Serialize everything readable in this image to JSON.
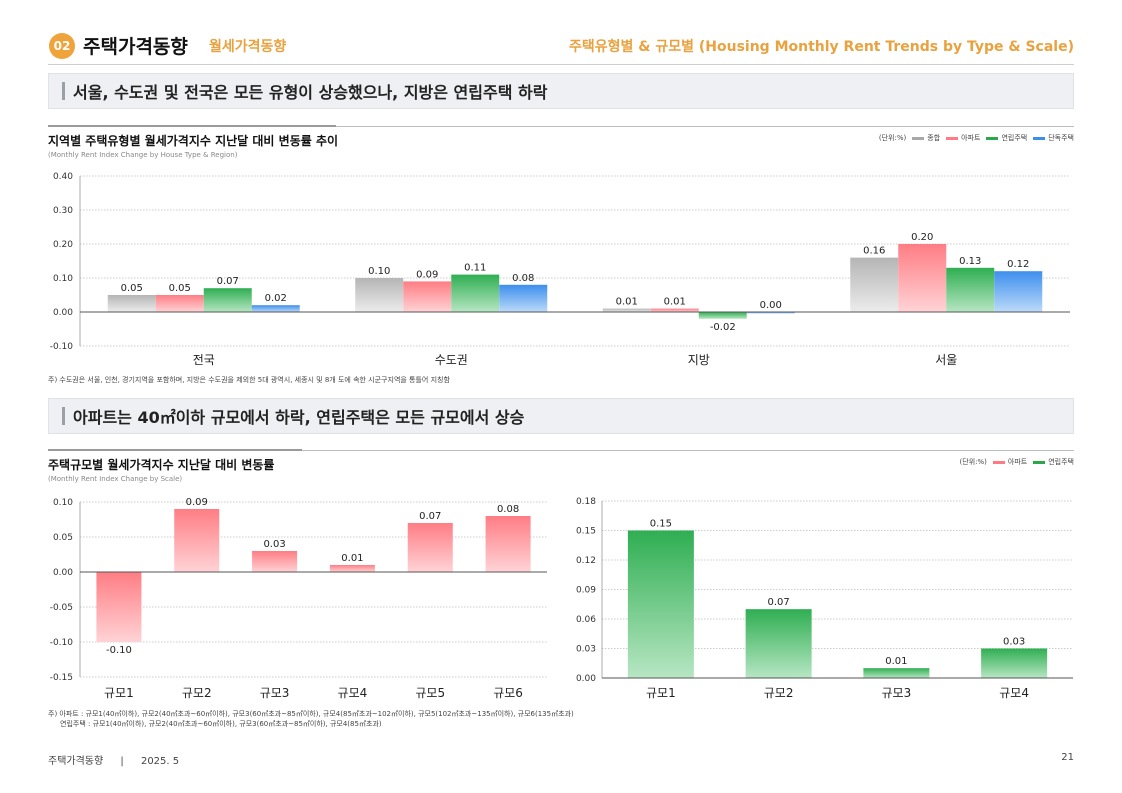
{
  "header": {
    "badge": "02",
    "title": "주택가격동향",
    "subtitle": "월세가격동향",
    "right_title": "주택유형별 & 규모별 (Housing Monthly Rent Trends by Type & Scale)"
  },
  "banner1": {
    "text": "서울, 수도권 및 전국은 모든 유형이 상승했으나, 지방은 연립주택 하락"
  },
  "banner2": {
    "text": "아파트는 40㎡이하 규모에서 하락, 연립주택은 모든 규모에서 상승"
  },
  "colors": {
    "gray": "#c9c9c9",
    "red": "#ff8f95",
    "green": "#3cb55b",
    "blue": "#4d9cf2",
    "accent": "#f0a33a"
  },
  "chart1": {
    "title": "지역별 주택유형별 월세가격지수 지난달 대비 변동률 추이",
    "subtitle": "(Monthly Rent Index Change by House Type & Region)",
    "unit": "(단위:%)",
    "legend": [
      "종합",
      "아파트",
      "연립주택",
      "단독주택"
    ],
    "note": "주) 수도권은 서울, 인천, 경기지역을 포함하며, 지방은 수도권을 제외한 5대 광역시, 세종시 및 8개 도에 속한 시군구지역을 통틀어 지칭함"
  },
  "chart2": {
    "title": "주택규모별 월세가격지수 지난달 대비 변동률",
    "subtitle": "(Monthly Rent Index Change by Scale)",
    "unit": "(단위:%)",
    "legend": [
      "아파트",
      "연립주택"
    ],
    "note1": "주) 아파트 : 규모1(40㎡이하), 규모2(40㎡초과~60㎡이하), 규모3(60㎡초과~85㎡이하), 규모4(85㎡초과~102㎡이하), 규모5(102㎡초과~135㎡이하), 규모6(135㎡초과)",
    "note2": "연립주택 : 규모1(40㎡이하), 규모2(40㎡초과~60㎡이하), 규모3(60㎡초과~85㎡이하), 규모4(85㎡초과)"
  },
  "footer": {
    "left": "주택가격동향",
    "sep": "|",
    "date": "2025. 5",
    "page": "21"
  },
  "chart_data": [
    {
      "type": "bar",
      "categories": [
        "전국",
        "수도권",
        "지방",
        "서울"
      ],
      "series": [
        {
          "name": "종합",
          "values": [
            0.05,
            0.1,
            0.01,
            0.16
          ],
          "labels": [
            "0.05",
            "0.10",
            "0.01",
            "0.16"
          ]
        },
        {
          "name": "아파트",
          "values": [
            0.05,
            0.09,
            0.01,
            0.2
          ],
          "labels": [
            "0.05",
            "0.09",
            "0.01",
            "0.20"
          ]
        },
        {
          "name": "연립주택",
          "values": [
            0.07,
            0.11,
            -0.02,
            0.13
          ],
          "labels": [
            "0.07",
            "0.11",
            "-0.02",
            "0.13"
          ]
        },
        {
          "name": "단독주택",
          "values": [
            0.02,
            0.08,
            0.0,
            0.12
          ],
          "labels": [
            "0.02",
            "0.08",
            "0.00",
            "0.12"
          ]
        }
      ],
      "ylim": [
        -0.1,
        0.4
      ],
      "yticks": [
        "0.40",
        "0.30",
        "0.20",
        "0.10",
        "0.00",
        "-0.10"
      ],
      "ytick_values": [
        0.4,
        0.3,
        0.2,
        0.1,
        0.0,
        -0.1
      ],
      "grid": true
    },
    {
      "type": "bar",
      "categories": [
        "규모1",
        "규모2",
        "규모3",
        "규모4",
        "규모5",
        "규모6"
      ],
      "series": [
        {
          "name": "아파트",
          "values": [
            -0.1,
            0.09,
            0.03,
            0.01,
            0.07,
            0.08
          ],
          "labels": [
            "-0.10",
            "0.09",
            "0.03",
            "0.01",
            "0.07",
            "0.08"
          ]
        }
      ],
      "ylim": [
        -0.15,
        0.1
      ],
      "yticks": [
        "0.10",
        "0.05",
        "0.00",
        "-0.05",
        "-0.10",
        "-0.15"
      ],
      "ytick_values": [
        0.1,
        0.05,
        0.0,
        -0.05,
        -0.1,
        -0.15
      ],
      "grid": true
    },
    {
      "type": "bar",
      "categories": [
        "규모1",
        "규모2",
        "규모3",
        "규모4"
      ],
      "series": [
        {
          "name": "연립주택",
          "values": [
            0.15,
            0.07,
            0.01,
            0.03
          ],
          "labels": [
            "0.15",
            "0.07",
            "0.01",
            "0.03"
          ]
        }
      ],
      "ylim": [
        0.0,
        0.18
      ],
      "yticks": [
        "0.18",
        "0.15",
        "0.12",
        "0.09",
        "0.06",
        "0.03",
        "0.00"
      ],
      "ytick_values": [
        0.18,
        0.15,
        0.12,
        0.09,
        0.06,
        0.03,
        0.0
      ],
      "grid": true
    }
  ]
}
